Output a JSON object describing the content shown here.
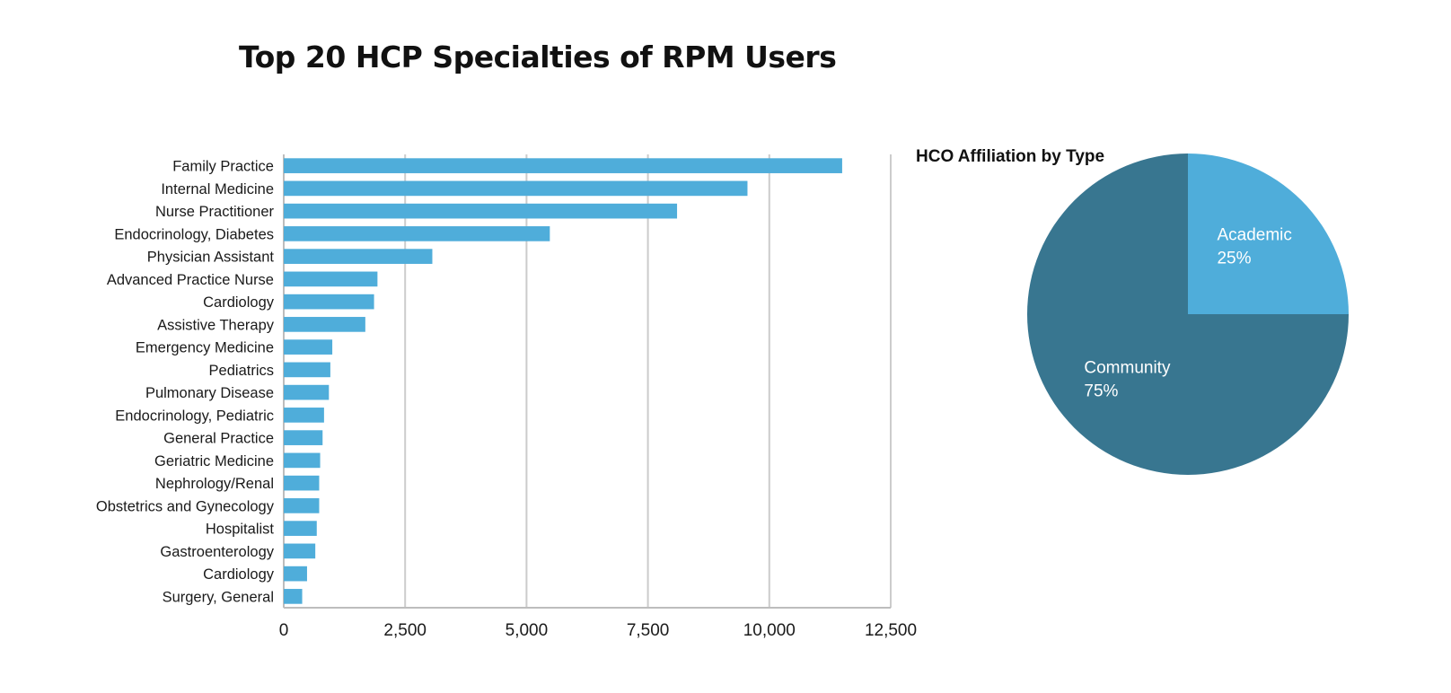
{
  "title": "Top 20 HCP Specialties of RPM Users",
  "colors": {
    "bar": "#4fadda",
    "grid": "#cccccc",
    "axis": "#bdbdbd",
    "pie_academic": "#4fadda",
    "pie_community": "#387690"
  },
  "chart_data": [
    {
      "type": "bar",
      "orientation": "horizontal",
      "title": "Top 20 HCP Specialties of RPM Users",
      "xlabel": "",
      "ylabel": "",
      "xlim": [
        0,
        12500
      ],
      "xticks": [
        "0",
        "2,500",
        "5,000",
        "7,500",
        "10,000",
        "12,500"
      ],
      "xtick_values": [
        0,
        2500,
        5000,
        7500,
        10000,
        12500
      ],
      "grid": "vertical",
      "categories": [
        "Family Practice",
        "Internal Medicine",
        "Nurse Practitioner",
        "Endocrinology, Diabetes",
        "Physician Assistant",
        "Advanced Practice Nurse",
        "Cardiology",
        "Assistive Therapy",
        "Emergency Medicine",
        "Pediatrics",
        "Pulmonary Disease",
        "Endocrinology, Pediatric",
        "General Practice",
        "Geriatric Medicine",
        "Nephrology/Renal",
        "Obstetrics and Gynecology",
        "Hospitalist",
        "Gastroenterology",
        "Cardiology",
        "Surgery, General"
      ],
      "values": [
        11500,
        9550,
        8100,
        5480,
        3060,
        1930,
        1860,
        1680,
        1000,
        960,
        930,
        830,
        800,
        750,
        730,
        730,
        680,
        650,
        480,
        380
      ]
    },
    {
      "type": "pie",
      "title": "HCO Affiliation by Type",
      "slices": [
        {
          "label": "Academic",
          "value": 25,
          "display": "25%"
        },
        {
          "label": "Community",
          "value": 75,
          "display": "75%"
        }
      ]
    }
  ]
}
